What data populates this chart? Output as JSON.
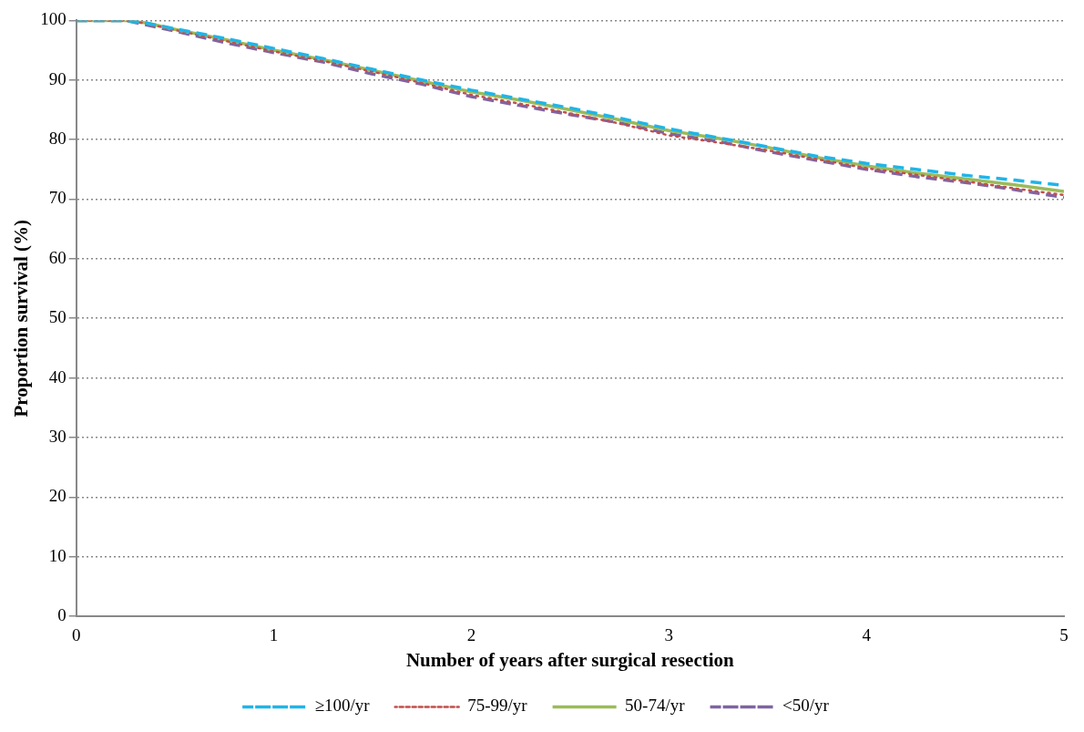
{
  "chart_data": {
    "type": "line",
    "xlabel": "Number of years after surgical resection",
    "ylabel": "Proportion survival (%)",
    "x": [
      0,
      0.25,
      0.35,
      0.5,
      0.75,
      1,
      1.25,
      1.5,
      1.75,
      2,
      2.25,
      2.5,
      2.75,
      3,
      3.25,
      3.5,
      3.75,
      4,
      4.25,
      4.5,
      4.75,
      5
    ],
    "series": [
      {
        "name": "≥100/yr",
        "color": "#1fb5e8",
        "line_style": "dashed",
        "values": [
          100,
          100,
          99.6,
          98.6,
          97.0,
          95.3,
          93.6,
          91.8,
          90.0,
          88.3,
          86.8,
          85.3,
          83.6,
          81.8,
          80.3,
          78.8,
          77.2,
          76.0,
          75.0,
          74.0,
          73.2,
          72.3
        ]
      },
      {
        "name": "75-99/yr",
        "color": "#c0504d",
        "line_style": "dotted",
        "values": [
          100,
          100,
          99.5,
          98.4,
          96.6,
          94.8,
          93.2,
          91.4,
          89.5,
          87.5,
          86.0,
          84.4,
          82.7,
          80.7,
          79.5,
          78.2,
          76.7,
          75.2,
          74.1,
          73.0,
          71.8,
          70.7
        ]
      },
      {
        "name": "50-74/yr",
        "color": "#9bbb59",
        "line_style": "solid",
        "values": [
          100,
          100,
          99.6,
          98.5,
          96.8,
          95.0,
          93.4,
          91.6,
          89.8,
          88.0,
          86.6,
          85.0,
          83.3,
          81.5,
          80.2,
          78.7,
          77.0,
          75.6,
          74.4,
          73.4,
          72.4,
          71.3
        ]
      },
      {
        "name": "<50/yr",
        "color": "#8064a2",
        "line_style": "dashed",
        "values": [
          100,
          100,
          99.3,
          98.2,
          96.3,
          94.6,
          93.0,
          91.0,
          89.3,
          87.2,
          85.7,
          84.2,
          82.8,
          81.0,
          79.7,
          78.0,
          76.5,
          75.0,
          73.8,
          72.8,
          71.6,
          70.3
        ]
      }
    ],
    "xlim": [
      0,
      5
    ],
    "xticks": [
      0,
      1,
      2,
      3,
      4,
      5
    ],
    "ylim": [
      0,
      100
    ],
    "yticks": [
      0,
      10,
      20,
      30,
      40,
      50,
      60,
      70,
      80,
      90,
      100
    ],
    "grid": "y",
    "legend": "bottom",
    "marker": "none"
  }
}
